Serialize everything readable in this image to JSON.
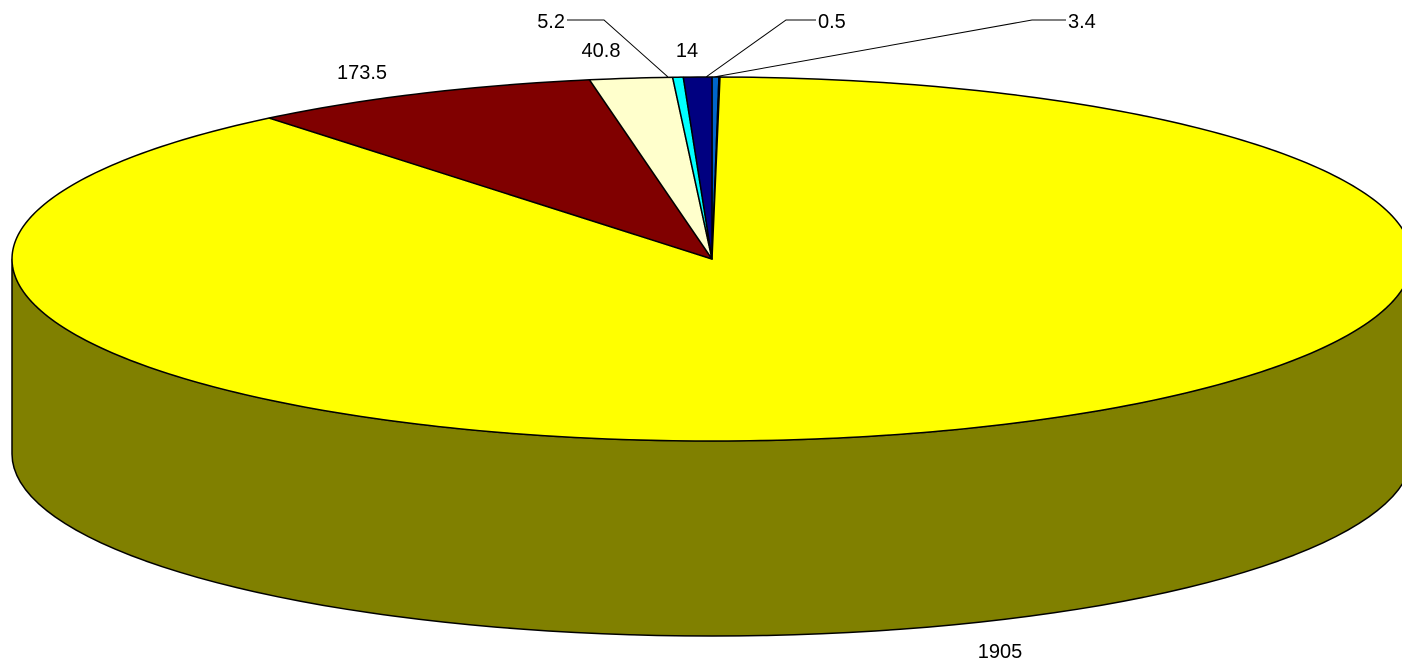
{
  "chart_data": {
    "type": "pie",
    "style": "3d",
    "values": [
      3.4,
      0.5,
      1905,
      173.5,
      40.8,
      5.2,
      14
    ],
    "labels": [
      "3.4",
      "0.5",
      "1905",
      "173.5",
      "40.8",
      "5.2",
      "14"
    ],
    "colors": [
      "#0066CC",
      "#3399FF",
      "#FFFF00",
      "#800000",
      "#FFFFCC",
      "#00FFFF",
      "#000080"
    ],
    "side_colors": [
      "#003366",
      "#1A4D80",
      "#808000",
      "#400000",
      "#80806A",
      "#008080",
      "#000040"
    ],
    "legend": "none",
    "start_angle": "top",
    "direction": "clockwise"
  }
}
